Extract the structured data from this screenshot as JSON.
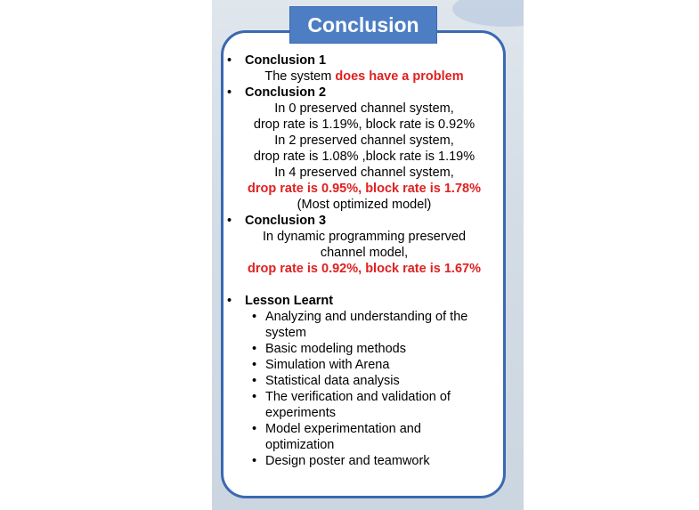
{
  "title": "Conclusion",
  "conclusions": {
    "c1": {
      "heading": "Conclusion 1",
      "text_prefix": "The system ",
      "text_highlight": "does have a problem"
    },
    "c2": {
      "heading": "Conclusion 2",
      "lines": [
        "In 0 preserved channel system,",
        "drop rate is 1.19%, block rate is 0.92%",
        "In 2 preserved channel system,",
        "drop rate is 1.08% ,block rate is 1.19%",
        "In 4 preserved channel system,"
      ],
      "highlight": "drop rate is 0.95%, block rate is 1.78%",
      "note": "(Most optimized model)"
    },
    "c3": {
      "heading": "Conclusion 3",
      "lines": [
        "In dynamic programming preserved",
        "channel model,"
      ],
      "highlight": "drop rate is 0.92%, block rate is 1.67%"
    }
  },
  "lessons": {
    "heading": "Lesson Learnt",
    "items": [
      "Analyzing and understanding of the system",
      "Basic modeling methods",
      "Simulation with Arena",
      "Statistical data analysis",
      "The verification and validation of experiments",
      "Model experimentation and optimization",
      "Design poster and teamwork"
    ]
  },
  "bullet_char": "•",
  "colors": {
    "accent": "#4d7ec4",
    "border": "#3b68b1",
    "highlight": "#e02020"
  }
}
